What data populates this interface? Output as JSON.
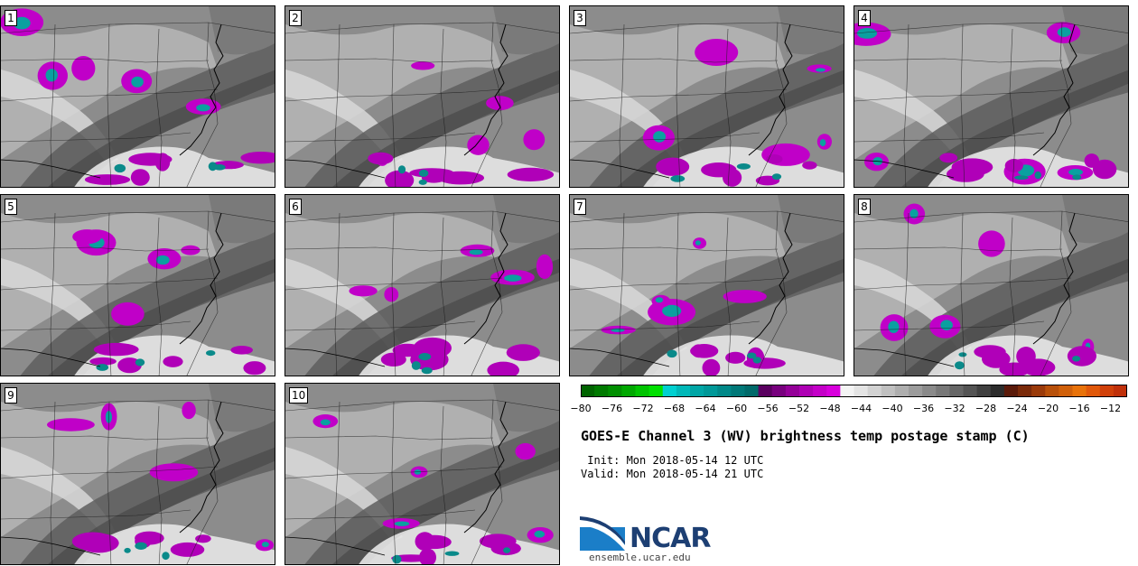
{
  "panels": [
    {
      "label": "1"
    },
    {
      "label": "2"
    },
    {
      "label": "3"
    },
    {
      "label": "4"
    },
    {
      "label": "5"
    },
    {
      "label": "6"
    },
    {
      "label": "7"
    },
    {
      "label": "8"
    },
    {
      "label": "9"
    },
    {
      "label": "10"
    }
  ],
  "colorbar": {
    "ticks": [
      "−80",
      "−76",
      "−72",
      "−68",
      "−64",
      "−60",
      "−56",
      "−52",
      "−48",
      "−44",
      "−40",
      "−36",
      "−32",
      "−28",
      "−24",
      "−20",
      "−16",
      "−12"
    ],
    "colors": [
      "#006400",
      "#007a00",
      "#008f00",
      "#00a800",
      "#00c400",
      "#00e000",
      "#00d0d0",
      "#00b8b8",
      "#00a6a6",
      "#009898",
      "#008888",
      "#007878",
      "#006a6a",
      "#5a0060",
      "#78007e",
      "#940098",
      "#ae00b4",
      "#c400c8",
      "#d800dc",
      "#f4f4f4",
      "#e4e4e4",
      "#d2d2d2",
      "#c0c0c0",
      "#aeaeae",
      "#9c9c9c",
      "#8a8a8a",
      "#787878",
      "#666666",
      "#545454",
      "#404040",
      "#2c2c2c",
      "#5a1a0a",
      "#7a2a0a",
      "#9a3a0a",
      "#b8500a",
      "#d0600a",
      "#e8720a",
      "#e0580a",
      "#d0400a",
      "#c0300a"
    ]
  },
  "title": "GOES-E Channel 3 (WV) brightness temp postage stamp (C)",
  "init": " Init: Mon 2018-05-14 12 UTC",
  "valid": "Valid: Mon 2018-05-14 21 UTC",
  "logo": {
    "text": "NCAR",
    "site": "ensemble.ucar.edu"
  }
}
